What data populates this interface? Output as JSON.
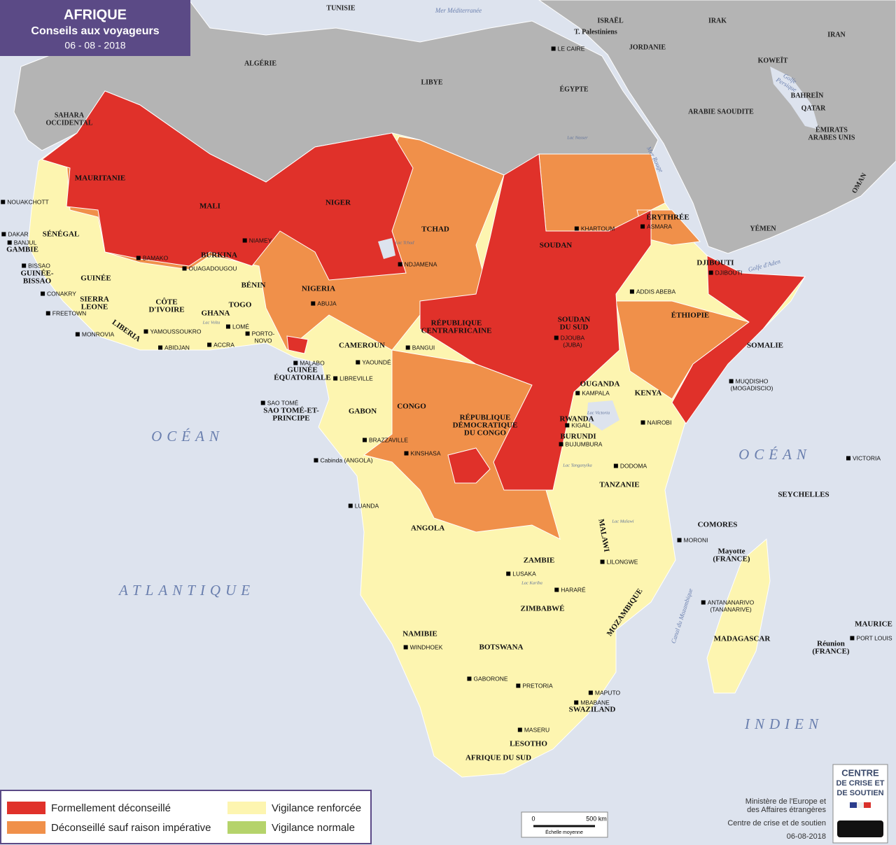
{
  "header": {
    "title": "AFRIQUE",
    "subtitle": "Conseils aux voyageurs",
    "date": "06 - 08 - 2018"
  },
  "legend": {
    "items": [
      {
        "label": "Formellement déconseillé",
        "color": "#e0312a"
      },
      {
        "label": "Déconseillé sauf raison impérative",
        "color": "#f0904a"
      },
      {
        "label": "Vigilance renforcée",
        "color": "#fdf5b0"
      },
      {
        "label": "Vigilance normale",
        "color": "#b5d36b"
      }
    ]
  },
  "water": [
    [
      "Mer Méditerranée"
    ],
    [
      "OCÉAN"
    ],
    [
      "ATLANTIQUE"
    ],
    [
      "OCÉAN"
    ],
    [
      "INDIEN"
    ],
    [
      "Golfe",
      "Persique"
    ],
    [
      "Mer Rouge"
    ],
    [
      "Golfe d'Aden"
    ],
    [
      "Canal du Mozambique"
    ],
    [
      "Lac Tchad"
    ],
    [
      "Lac Victoria"
    ],
    [
      "Lac Tanganyika"
    ],
    [
      "Lac Malawi"
    ],
    [
      "Lac Kariba"
    ],
    [
      "Lac Volta"
    ],
    [
      "Lac Nasser"
    ]
  ],
  "countries": [
    [
      "TUNISIE"
    ],
    [
      "ALGÉRIE"
    ],
    [
      "LIBYE"
    ],
    [
      "ÉGYPTE"
    ],
    [
      "ISRAËL"
    ],
    [
      "T. Palestiniens"
    ],
    [
      "JORDANIE"
    ],
    [
      "IRAK"
    ],
    [
      "IRAN"
    ],
    [
      "KOWEÏT"
    ],
    [
      "BAHREÏN"
    ],
    [
      "QATAR"
    ],
    [
      "ARABIE SAOUDITE"
    ],
    [
      "ÉMIRATS",
      "ARABES UNIS"
    ],
    [
      "OMAN"
    ],
    [
      "YÉMEN"
    ],
    [
      "SAHARA",
      "OCCIDENTAL"
    ],
    [
      "MAURITANIE"
    ],
    [
      "MALI"
    ],
    [
      "NIGER"
    ],
    [
      "TCHAD"
    ],
    [
      "SOUDAN"
    ],
    [
      "ÉRYTHRÉE"
    ],
    [
      "DJIBOUTI"
    ],
    [
      "ÉTHIOPIE"
    ],
    [
      "SOMALIE"
    ],
    [
      "SOUDAN",
      "DU SUD"
    ],
    [
      "RÉPUBLIQUE",
      "CENTRAFRICAINE"
    ],
    [
      "CAMEROUN"
    ],
    [
      "NIGERIA"
    ],
    [
      "BÉNIN"
    ],
    [
      "TOGO"
    ],
    [
      "GHANA"
    ],
    [
      "BURKINA"
    ],
    [
      "CÔTE",
      "D'IVOIRE"
    ],
    [
      "LIBERIA"
    ],
    [
      "SIERRA",
      "LEONE"
    ],
    [
      "GUINÉE"
    ],
    [
      "GUINÉE-",
      "BISSAO"
    ],
    [
      "GAMBIE"
    ],
    [
      "SÉNÉGAL"
    ],
    [
      "GUINÉE",
      "ÉQUATORIALE"
    ],
    [
      "SAO TOMÉ-ET-",
      "PRINCIPE"
    ],
    [
      "GABON"
    ],
    [
      "CONGO"
    ],
    [
      "RÉPUBLIQUE",
      "DÉMOCRATIQUE",
      "DU CONGO"
    ],
    [
      "OUGANDA"
    ],
    [
      "KENYA"
    ],
    [
      "RWANDA"
    ],
    [
      "BURUNDI"
    ],
    [
      "TANZANIE"
    ],
    [
      "ANGOLA"
    ],
    [
      "ZAMBIE"
    ],
    [
      "MALAWI"
    ],
    [
      "MOZAMBIQUE"
    ],
    [
      "ZIMBABWÉ"
    ],
    [
      "NAMIBIE"
    ],
    [
      "BOTSWANA"
    ],
    [
      "AFRIQUE DU SUD"
    ],
    [
      "LESOTHO"
    ],
    [
      "SWAZILAND"
    ],
    [
      "MADAGASCAR"
    ],
    [
      "SEYCHELLES"
    ],
    [
      "COMORES"
    ],
    [
      "Mayotte",
      "(FRANCE)"
    ],
    [
      "MAURICE"
    ],
    [
      "Réunion",
      "(FRANCE)"
    ]
  ],
  "cities": [
    [
      "NOUAKCHOTT"
    ],
    [
      "DAKAR"
    ],
    [
      "BANJUL"
    ],
    [
      "BISSAO"
    ],
    [
      "CONAKRY"
    ],
    [
      "FREETOWN"
    ],
    [
      "MONROVIA"
    ],
    [
      "BAMAKO"
    ],
    [
      "OUAGADOUGOU"
    ],
    [
      "NIAMEY"
    ],
    [
      "YAMOUSSOUKRO"
    ],
    [
      "ABIDJAN"
    ],
    [
      "ACCRA"
    ],
    [
      "LOMÉ"
    ],
    [
      "PORTO-",
      "NOVO"
    ],
    [
      "ABUJA"
    ],
    [
      "NDJAMENA"
    ],
    [
      "KHARTOUM"
    ],
    [
      "ASMARA"
    ],
    [
      "DJIBOUTI"
    ],
    [
      "ADDIS ABEBA"
    ],
    [
      "DJOUBA",
      "(JUBA)"
    ],
    [
      "BANGUI"
    ],
    [
      "MALABO"
    ],
    [
      "YAOUNDÉ"
    ],
    [
      "LIBREVILLE"
    ],
    [
      "SAO TOMÉ"
    ],
    [
      "BRAZZAVILLE"
    ],
    [
      "KINSHASA"
    ],
    [
      "Cabinda (ANGOLA)"
    ],
    [
      "LUANDA"
    ],
    [
      "KAMPALA"
    ],
    [
      "NAIROBI"
    ],
    [
      "KIGALI"
    ],
    [
      "BUJUMBURA"
    ],
    [
      "MUQDISHO",
      "(MOGADISCIO)"
    ],
    [
      "DODOMA"
    ],
    [
      "VICTORIA"
    ],
    [
      "MORONI"
    ],
    [
      "LILONGWE"
    ],
    [
      "LUSAKA"
    ],
    [
      "HARARÉ"
    ],
    [
      "ANTANANARIVO",
      "(TANANARIVE)"
    ],
    [
      "PORT LOUIS"
    ],
    [
      "WINDHOEK"
    ],
    [
      "GABORONE"
    ],
    [
      "PRETORIA"
    ],
    [
      "MAPUTO"
    ],
    [
      "MBABANE"
    ],
    [
      "MASERU"
    ],
    [
      "LE CAIRE"
    ]
  ],
  "scale": {
    "zero": "0",
    "distance": "500 km",
    "caption": "Échelle moyenne"
  },
  "credits": {
    "ministry": [
      "Ministère de l'Europe et",
      "des Affaires étrangères"
    ],
    "centre": "Centre de crise et de soutien",
    "date": "06-08-2018"
  },
  "logo": [
    "CENTRE",
    "DE CRISE ET",
    "DE SOUTIEN"
  ]
}
